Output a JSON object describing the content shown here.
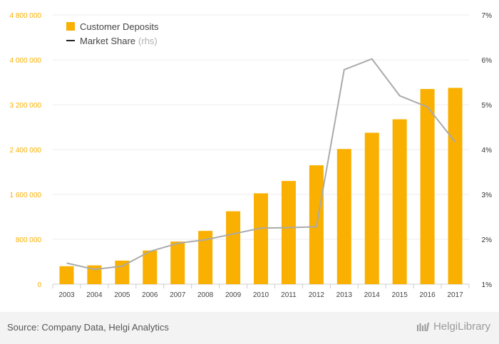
{
  "chart_data": {
    "type": "bar+line",
    "categories": [
      "2003",
      "2004",
      "2005",
      "2006",
      "2007",
      "2008",
      "2009",
      "2010",
      "2011",
      "2012",
      "2013",
      "2014",
      "2015",
      "2016",
      "2017"
    ],
    "series": [
      {
        "name": "Customer Deposits",
        "type": "bar",
        "axis": "left",
        "color": "#f9b000",
        "values": [
          320000,
          335000,
          420000,
          600000,
          760000,
          950000,
          1300000,
          1620000,
          1840000,
          2120000,
          2410000,
          2700000,
          2940000,
          3480000,
          3500000
        ]
      },
      {
        "name": "Market Share",
        "suffix": "(rhs)",
        "type": "line",
        "axis": "right",
        "color": "#aaaaaa",
        "legend_color": "#222222",
        "values": [
          1.47,
          1.33,
          1.4,
          1.73,
          1.91,
          1.99,
          2.12,
          2.25,
          2.26,
          2.28,
          5.78,
          6.02,
          5.2,
          4.95,
          4.17
        ]
      }
    ],
    "y_left": {
      "range": [
        0,
        4800000
      ],
      "ticks": [
        0,
        800000,
        1600000,
        2400000,
        3200000,
        4000000,
        4800000
      ],
      "tick_labels": [
        "0",
        "800 000",
        "1 600 000",
        "2 400 000",
        "3 200 000",
        "4 000 000",
        "4 800 000"
      ],
      "label_color": "#f9b000"
    },
    "y_right": {
      "range": [
        1,
        7
      ],
      "ticks": [
        1,
        2,
        3,
        4,
        5,
        6,
        7
      ],
      "tick_labels": [
        "1%",
        "2%",
        "3%",
        "4%",
        "5%",
        "6%",
        "7%"
      ],
      "label_color": "#333333"
    },
    "grid": true,
    "legend_position": "top-left"
  },
  "footer": {
    "source": "Source: Company Data, Helgi Analytics",
    "brand": "HelgiLibrary"
  }
}
